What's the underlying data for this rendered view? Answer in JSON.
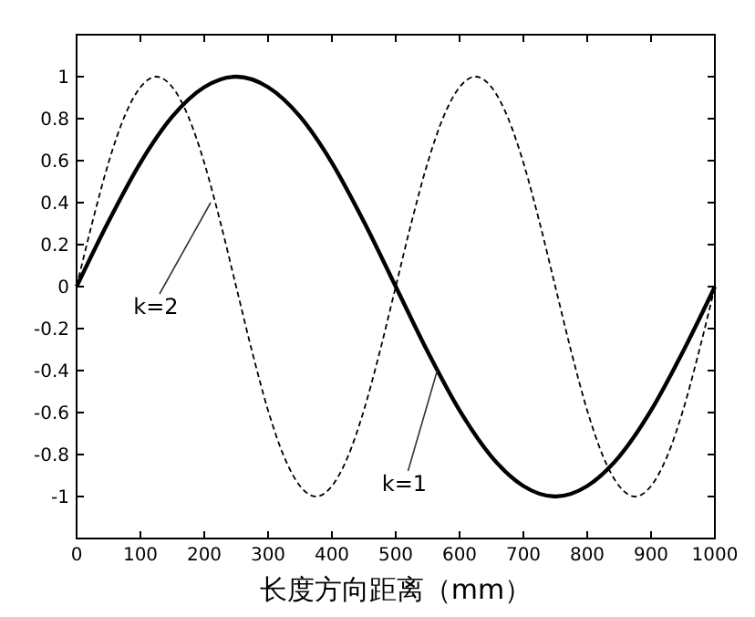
{
  "chart_data": {
    "type": "line",
    "xlabel": "长度方向距离（mm）",
    "xlim": [
      0,
      1000
    ],
    "xticks": [
      0,
      100,
      200,
      300,
      400,
      500,
      600,
      700,
      800,
      900,
      1000
    ],
    "ylim": [
      -1.2,
      1.2
    ],
    "yticks": [
      -1,
      -0.8,
      -0.6,
      -0.4,
      -0.2,
      0,
      0.2,
      0.4,
      0.6,
      0.8,
      1
    ],
    "grid": false,
    "series": [
      {
        "color": "#000000",
        "line_style": "solid",
        "x": [
          0,
          50,
          100,
          150,
          200,
          250,
          300,
          350,
          400,
          450,
          500,
          550,
          600,
          650,
          700,
          750,
          800,
          850,
          900,
          950,
          1000
        ],
        "values": [
          0,
          0.31,
          0.59,
          0.81,
          0.95,
          1,
          0.95,
          0.81,
          0.59,
          0.31,
          0,
          -0.31,
          -0.59,
          -0.81,
          -0.95,
          -1,
          -0.95,
          -0.81,
          -0.59,
          -0.31,
          0
        ]
      },
      {
        "color": "#000000",
        "line_style": "dashed",
        "x": [
          0,
          25,
          50,
          75,
          100,
          125,
          150,
          175,
          200,
          225,
          250,
          275,
          300,
          325,
          350,
          375,
          400,
          425,
          450,
          475,
          500,
          525,
          550,
          575,
          600,
          625,
          650,
          675,
          700,
          725,
          750,
          775,
          800,
          825,
          850,
          875,
          900,
          925,
          950,
          975,
          1000
        ],
        "values": [
          0,
          0.31,
          0.59,
          0.81,
          0.95,
          1,
          0.95,
          0.81,
          0.59,
          0.31,
          0,
          -0.31,
          -0.59,
          -0.81,
          -0.95,
          -1,
          -0.95,
          -0.81,
          -0.59,
          -0.31,
          0,
          0.31,
          0.59,
          0.81,
          0.95,
          1,
          0.95,
          0.81,
          0.59,
          0.31,
          0,
          -0.31,
          -0.59,
          -0.81,
          -0.95,
          -1,
          -0.95,
          -0.81,
          -0.59,
          -0.31,
          0
        ]
      }
    ],
    "annotations": [
      {
        "text": "k=2",
        "x": 210,
        "y": 0.4
      },
      {
        "text": "k=1",
        "x": 565,
        "y": -0.4
      }
    ]
  }
}
